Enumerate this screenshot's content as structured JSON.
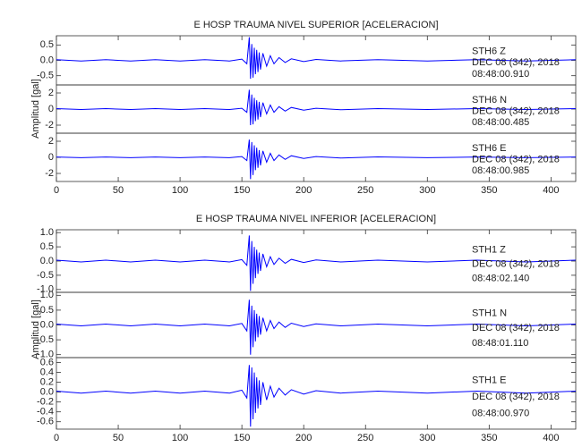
{
  "chart_data": [
    {
      "type": "line",
      "title": "E HOSP TRAUMA NIVEL SUPERIOR [ACELERACION]",
      "ylabel": "Amplitud [gal]",
      "color": "#0000ff",
      "xlim": [
        0,
        420
      ],
      "xticks": [
        0,
        50,
        100,
        150,
        200,
        250,
        300,
        350,
        400
      ],
      "x": [
        0,
        20,
        40,
        60,
        80,
        100,
        120,
        140,
        150,
        154,
        156,
        157,
        158,
        159,
        160,
        161,
        162,
        163,
        164,
        165,
        167,
        170,
        173,
        176,
        180,
        185,
        190,
        200,
        210,
        230,
        260,
        300,
        340,
        380,
        420
      ],
      "panels": [
        {
          "name": "STH6   Z",
          "date": "DEC 08 (342), 2018",
          "time": "08:48:00.910",
          "ylim": [
            -0.8,
            0.8
          ],
          "yticks": [
            {
              "value": 0.5,
              "label": "0.5"
            },
            {
              "value": 0,
              "label": "0.0"
            },
            {
              "value": -0.5,
              "label": "-0.5"
            }
          ],
          "values": [
            0.02,
            -0.02,
            0.02,
            -0.02,
            0.02,
            -0.02,
            0.02,
            -0.02,
            0.04,
            -0.11,
            0.75,
            -0.6,
            0.53,
            -0.56,
            0.41,
            -0.45,
            0.34,
            -0.38,
            0.26,
            -0.3,
            0.23,
            -0.19,
            0.15,
            -0.11,
            0.09,
            -0.07,
            0.05,
            -0.04,
            0.03,
            -0.02,
            0.02,
            -0.02,
            0.02,
            -0.02,
            0.02
          ]
        },
        {
          "name": "STH6   N",
          "date": "DEC 08 (342), 2018",
          "time": "08:48:00.485",
          "ylim": [
            -3,
            3
          ],
          "yticks": [
            2,
            0,
            -2
          ],
          "values": [
            0.05,
            -0.05,
            0.05,
            -0.05,
            0.05,
            -0.05,
            0.05,
            -0.05,
            0.1,
            -0.4,
            2.4,
            -2.0,
            1.8,
            -1.9,
            1.4,
            -1.5,
            1.1,
            -1.3,
            0.9,
            -1.0,
            0.8,
            -0.6,
            0.5,
            -0.4,
            0.3,
            -0.25,
            0.2,
            -0.15,
            0.1,
            -0.08,
            0.06,
            -0.05,
            0.05,
            -0.05,
            0.05
          ]
        },
        {
          "name": "STH6   E",
          "date": "DEC 08 (342), 2018",
          "time": "08:48:00.985",
          "ylim": [
            -3,
            3
          ],
          "yticks": [
            2,
            0,
            -2
          ],
          "values": [
            0.05,
            -0.05,
            0.05,
            -0.05,
            0.05,
            -0.05,
            0.05,
            -0.05,
            0.1,
            -0.4,
            2.2,
            -2.7,
            1.9,
            -2.2,
            1.5,
            -1.6,
            1.2,
            -1.3,
            0.9,
            -1.0,
            0.8,
            -0.6,
            0.5,
            -0.4,
            0.3,
            -0.25,
            0.2,
            -0.15,
            0.1,
            -0.08,
            0.06,
            -0.05,
            0.05,
            -0.05,
            0.05
          ]
        }
      ]
    },
    {
      "type": "line",
      "title": "E HOSP TRAUMA NIVEL INFERIOR [ACELERACION]",
      "ylabel": "Amplitud [gal]",
      "color": "#0000ff",
      "xlim": [
        0,
        420
      ],
      "xticks": [
        0,
        50,
        100,
        150,
        200,
        250,
        300,
        350,
        400
      ],
      "x": [
        0,
        20,
        40,
        60,
        80,
        100,
        120,
        140,
        150,
        154,
        156,
        157,
        158,
        159,
        160,
        161,
        162,
        163,
        164,
        165,
        167,
        170,
        173,
        176,
        180,
        185,
        190,
        200,
        210,
        230,
        260,
        300,
        340,
        380,
        420
      ],
      "panels": [
        {
          "name": "STH1   Z",
          "date": "DEC 08 (342), 2018",
          "time": "08:48:02.140",
          "ylim": [
            -1.1,
            1.1
          ],
          "yticks": [
            {
              "value": 1,
              "label": "1.0"
            },
            0.5,
            {
              "value": 0,
              "label": "0.0"
            },
            -0.5,
            {
              "value": -1,
              "label": "-1.0"
            }
          ],
          "values": [
            0.03,
            -0.03,
            0.03,
            -0.03,
            0.03,
            -0.03,
            0.03,
            -0.03,
            0.05,
            -0.15,
            0.9,
            -1.05,
            0.7,
            -0.8,
            0.5,
            -0.6,
            0.4,
            -0.45,
            0.3,
            -0.35,
            0.25,
            -0.2,
            0.15,
            -0.12,
            0.1,
            -0.08,
            0.06,
            -0.05,
            0.04,
            -0.03,
            0.03,
            -0.03,
            0.03,
            -0.03,
            0.03
          ]
        },
        {
          "name": "STH1   N",
          "date": "DEC 08 (342), 2018",
          "time": "08:48:01.110",
          "ylim": [
            -1.1,
            1.1
          ],
          "yticks": [
            {
              "value": 1,
              "label": "1.0"
            },
            0.5,
            {
              "value": 0,
              "label": "0.0"
            },
            -0.5,
            {
              "value": -1,
              "label": "-1.0"
            }
          ],
          "values": [
            0.03,
            -0.03,
            0.03,
            -0.03,
            0.03,
            -0.03,
            0.03,
            -0.03,
            0.05,
            -0.2,
            0.85,
            -1.0,
            0.65,
            -0.75,
            0.5,
            -0.55,
            0.38,
            -0.42,
            0.3,
            -0.33,
            0.24,
            -0.2,
            0.15,
            -0.12,
            0.1,
            -0.08,
            0.06,
            -0.05,
            0.04,
            -0.03,
            0.03,
            -0.03,
            0.03,
            -0.03,
            0.03
          ]
        },
        {
          "name": "STH1   E",
          "date": "DEC 08 (342), 2018",
          "time": "08:48:00.970",
          "ylim": [
            -0.75,
            0.7
          ],
          "yticks": [
            0.6,
            0.4,
            0.2,
            {
              "value": 0,
              "label": "0.0"
            },
            -0.2,
            -0.4,
            -0.6
          ],
          "values": [
            0.02,
            -0.02,
            0.02,
            -0.02,
            0.02,
            -0.02,
            0.02,
            -0.02,
            0.04,
            -0.12,
            0.55,
            -0.7,
            0.5,
            -0.55,
            0.4,
            -0.42,
            0.3,
            -0.33,
            0.24,
            -0.26,
            0.2,
            -0.16,
            0.12,
            -0.1,
            0.08,
            -0.06,
            0.05,
            -0.04,
            0.03,
            -0.02,
            0.02,
            -0.02,
            0.02,
            -0.02,
            0.02
          ]
        }
      ]
    }
  ]
}
